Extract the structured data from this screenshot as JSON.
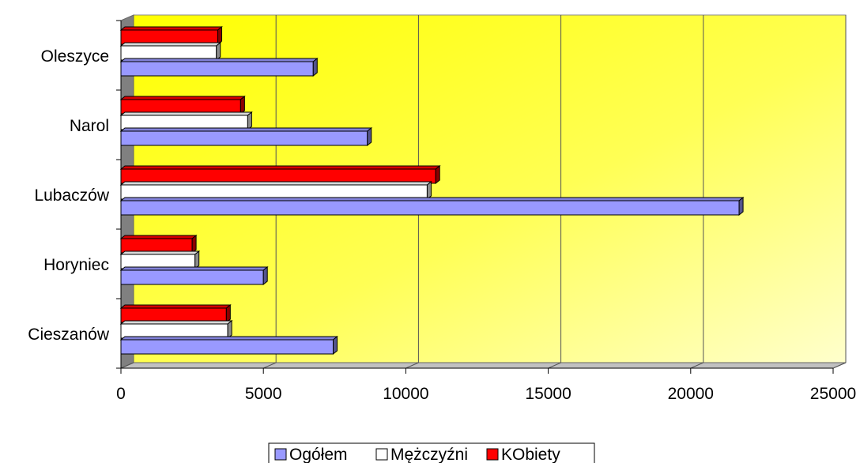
{
  "chart_data": {
    "type": "bar",
    "orientation": "horizontal",
    "style": "3d",
    "categories": [
      "Cieszanów",
      "Horyniec",
      "Lubaczów",
      "Narol",
      "Oleszyce"
    ],
    "series": [
      {
        "name": "Ogółem",
        "color": "#9999ff",
        "values": [
          7450,
          5000,
          21700,
          8650,
          6750
        ]
      },
      {
        "name": "Mężczyźni",
        "color": "#ffffff",
        "values": [
          3750,
          2600,
          10750,
          4450,
          3350
        ]
      },
      {
        "name": "KObiety",
        "color": "#ff0000",
        "values": [
          3700,
          2500,
          11050,
          4200,
          3400
        ]
      }
    ],
    "xlim": [
      0,
      25000
    ],
    "xticks": [
      "0",
      "5000",
      "10000",
      "15000",
      "20000",
      "25000"
    ],
    "grid": true,
    "legend": "bottom",
    "plot_background": "#ffff00"
  }
}
